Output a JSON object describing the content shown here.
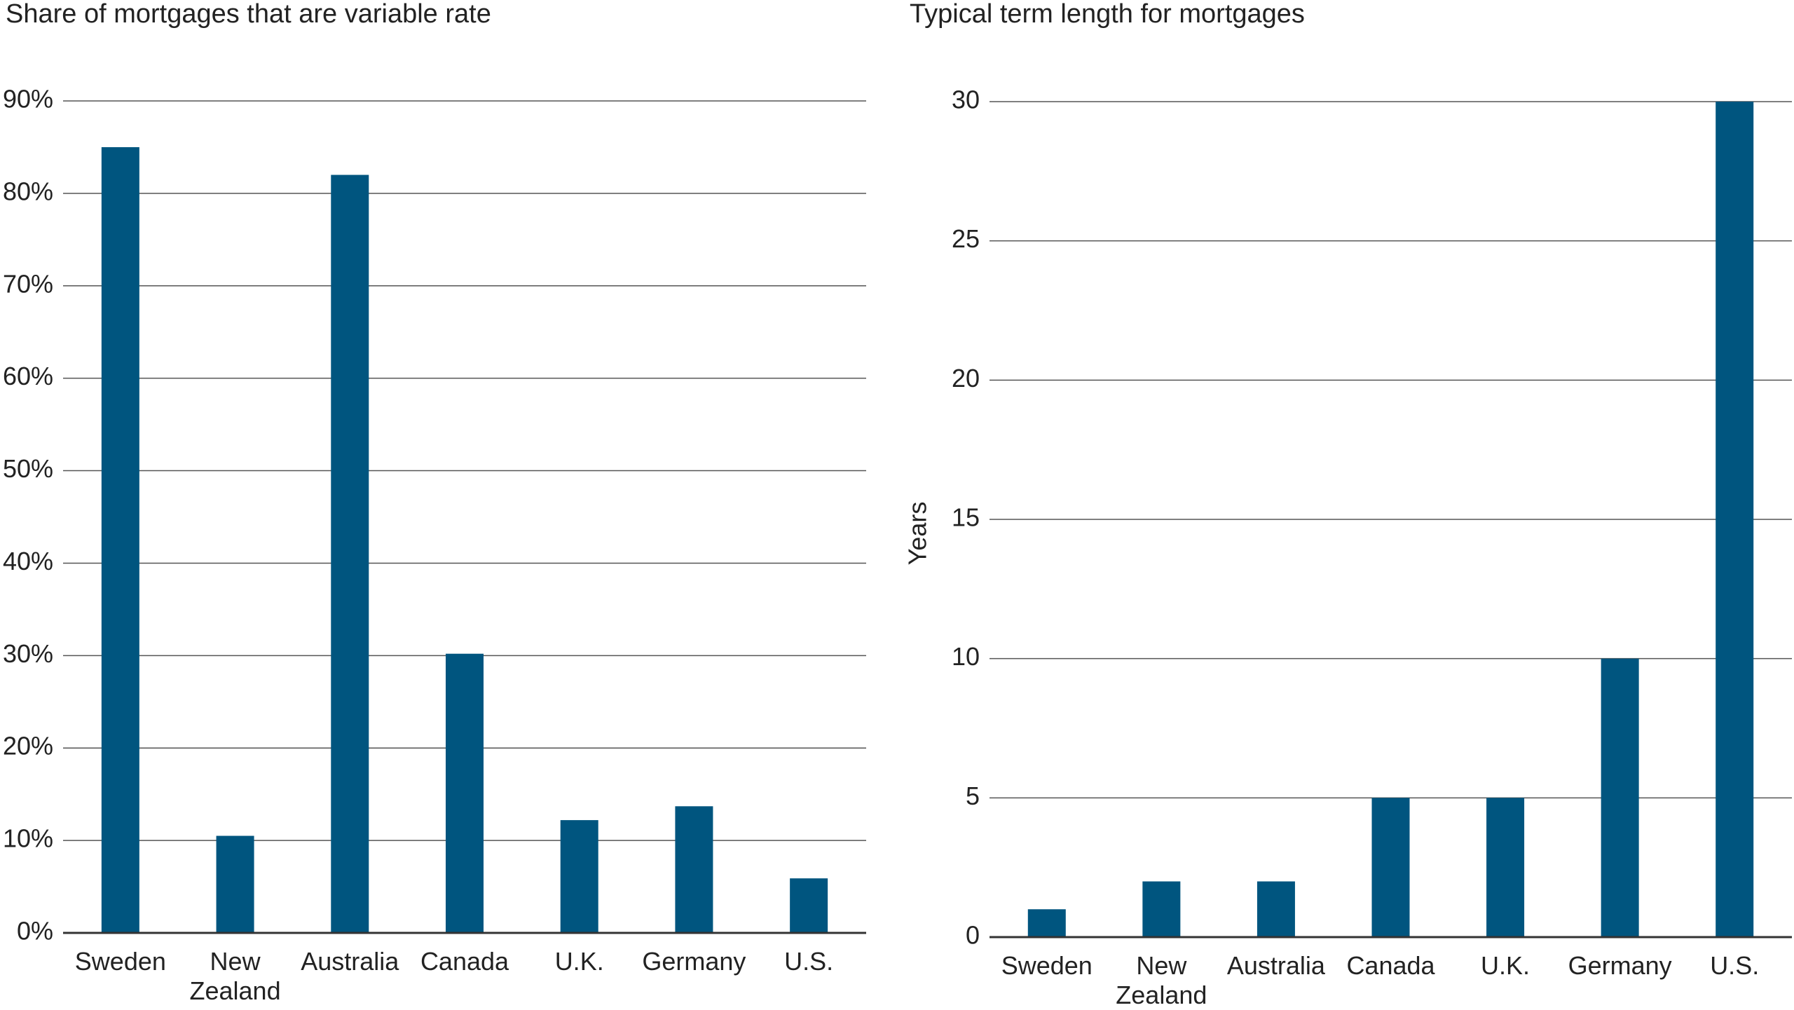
{
  "chart_data": [
    {
      "type": "bar",
      "title": "Share of mortgages that are variable rate",
      "categories": [
        "Sweden",
        "New Zealand",
        "Australia",
        "Canada",
        "U.K.",
        "Germany",
        "U.S."
      ],
      "values": [
        85,
        10.5,
        82,
        30.2,
        12.2,
        13.7,
        5.9
      ],
      "color": "#00557f",
      "ylim": [
        0,
        90
      ],
      "yticks": [
        {
          "value": 0,
          "label": "0%"
        },
        {
          "value": 10,
          "label": "10%"
        },
        {
          "value": 20,
          "label": "20%"
        },
        {
          "value": 30,
          "label": "30%"
        },
        {
          "value": 40,
          "label": "40%"
        },
        {
          "value": 50,
          "label": "50%"
        },
        {
          "value": 60,
          "label": "60%"
        },
        {
          "value": 70,
          "label": "70%"
        },
        {
          "value": 80,
          "label": "80%"
        },
        {
          "value": 90,
          "label": "90%"
        }
      ],
      "grid": true
    },
    {
      "type": "bar",
      "title": "Typical term length for mortgages",
      "ylabel": "Years",
      "categories": [
        "Sweden",
        "New Zealand",
        "Australia",
        "Canada",
        "U.K.",
        "Germany",
        "U.S."
      ],
      "values": [
        1,
        2,
        2,
        5,
        5,
        10,
        30
      ],
      "color": "#00557f",
      "ylim": [
        0,
        30
      ],
      "yticks": [
        0,
        5,
        10,
        15,
        20,
        25,
        30
      ],
      "grid": true
    }
  ]
}
